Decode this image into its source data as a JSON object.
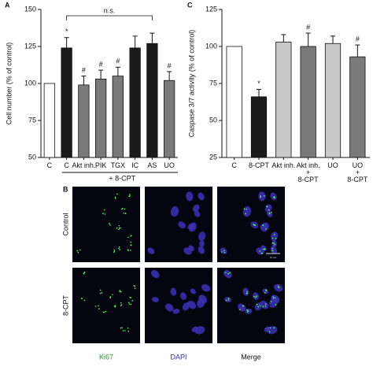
{
  "chart_data": [
    {
      "type": "bar",
      "panel": "A",
      "ylabel": "Cell number (% of control)",
      "categories": [
        "C",
        "C",
        "Akt inh.",
        "PIK",
        "TGX",
        "IC",
        "AS",
        "UO"
      ],
      "values": [
        100,
        124,
        99,
        103,
        105,
        124,
        127,
        102
      ],
      "errors": [
        0,
        7,
        6,
        6,
        6,
        8,
        7,
        6
      ],
      "colors": [
        "#ffffff",
        "#1a1a1a",
        "#7a7a7a",
        "#7a7a7a",
        "#7a7a7a",
        "#1a1a1a",
        "#1a1a1a",
        "#7a7a7a"
      ],
      "significance": [
        null,
        "*",
        "#",
        "#",
        "#",
        null,
        null,
        "#"
      ],
      "bracket_label": "n.s.",
      "group_label": "+ 8-CPT",
      "ylim": [
        50,
        150
      ],
      "yticks": [
        50,
        75,
        100,
        125,
        150
      ]
    },
    {
      "type": "bar",
      "panel": "C",
      "ylabel": "Caspase 3/7 activity (% of control)",
      "categories": [
        "C",
        "8-CPT",
        "Akt inh.",
        "Akt inh.\n+\n8-CPT",
        "UO",
        "UO\n+\n8-CPT"
      ],
      "values": [
        100,
        66,
        103,
        100,
        102,
        93
      ],
      "errors": [
        0,
        5,
        5,
        9,
        5,
        8
      ],
      "colors": [
        "#ffffff",
        "#1a1a1a",
        "#c8c8c8",
        "#7a7a7a",
        "#c8c8c8",
        "#7a7a7a"
      ],
      "significance": [
        null,
        "*",
        null,
        "#",
        null,
        "#"
      ],
      "ylim": [
        25,
        125
      ],
      "yticks": [
        25,
        50,
        75,
        100,
        125
      ]
    }
  ],
  "panel_b": {
    "label": "B",
    "rows": [
      "Control",
      "8-CPT"
    ],
    "columns": [
      "Ki67",
      "DAPI",
      "Merge"
    ],
    "scale_label": "10 µm"
  }
}
